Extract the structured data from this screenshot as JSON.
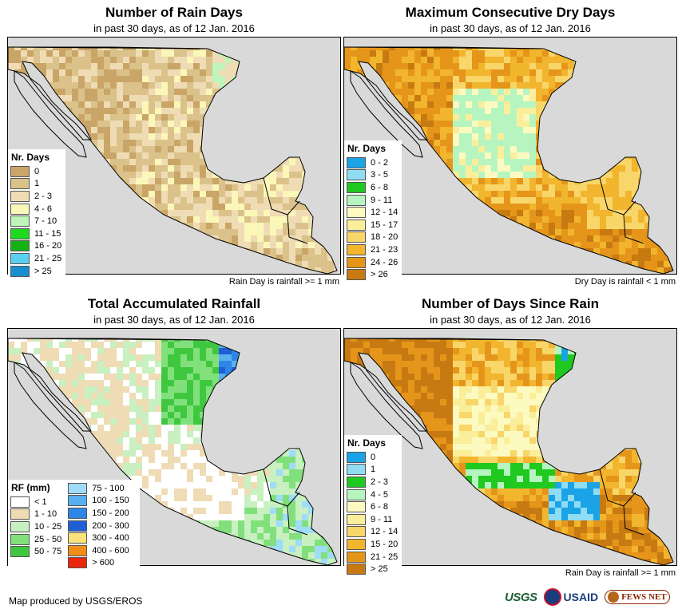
{
  "panels": [
    {
      "id": "rain-days",
      "title": "Number of Rain Days",
      "subtitle": "in past 30 days, as of 12 Jan. 2016",
      "note": "Rain Day is rainfall >= 1 mm",
      "palette": [
        "#c9a567",
        "#dbc28a",
        "#efdcb5",
        "#fbf7b8",
        "#bdf5bb",
        "#1fd91f",
        "#14b214",
        "#5ad0f0",
        "#1a8fcf"
      ],
      "legend": {
        "title": "Nr. Days",
        "items": [
          {
            "label": "0",
            "color": "#c9a567"
          },
          {
            "label": "1",
            "color": "#dbc28a"
          },
          {
            "label": "2 - 3",
            "color": "#efdcb5"
          },
          {
            "label": "4 - 6",
            "color": "#fbf7b8"
          },
          {
            "label": "7 - 10",
            "color": "#bdf5bb"
          },
          {
            "label": "11 - 15",
            "color": "#1fd91f"
          },
          {
            "label": "16 - 20",
            "color": "#14b214"
          },
          {
            "label": "21 - 25",
            "color": "#5ad0f0"
          },
          {
            "label": "> 25",
            "color": "#1a8fcf"
          }
        ]
      }
    },
    {
      "id": "max-dry-days",
      "title": "Maximum Consecutive Dry Days",
      "subtitle": "in past 30 days, as of 12 Jan. 2016",
      "note": "Dry Day is rainfall < 1 mm",
      "palette": [
        "#1ba3e8",
        "#8fdcf3",
        "#1fc91f",
        "#b6f5c0",
        "#fcfac0",
        "#fbee9a",
        "#f8d66a",
        "#f2b52e",
        "#e5961a",
        "#c77a12"
      ],
      "legend": {
        "title": "Nr. Days",
        "items": [
          {
            "label": "0 - 2",
            "color": "#1ba3e8"
          },
          {
            "label": "3 - 5",
            "color": "#8fdcf3"
          },
          {
            "label": "6 - 8",
            "color": "#1fc91f"
          },
          {
            "label": "9 - 11",
            "color": "#b6f5c0"
          },
          {
            "label": "12 - 14",
            "color": "#fcfac0"
          },
          {
            "label": "15 - 17",
            "color": "#fbee9a"
          },
          {
            "label": "18 - 20",
            "color": "#f8d66a"
          },
          {
            "label": "21 - 23",
            "color": "#f2b52e"
          },
          {
            "label": "24 - 26",
            "color": "#e5961a"
          },
          {
            "label": "> 26",
            "color": "#c77a12"
          }
        ]
      }
    },
    {
      "id": "accumulated-rainfall",
      "title": "Total Accumulated Rainfall",
      "subtitle": "in past 30 days, as of 12 Jan. 2016",
      "note": "",
      "palette": [
        "#ffffff",
        "#efdcb5",
        "#c8f0c0",
        "#82e07c",
        "#3fc83f",
        "#9edcf8",
        "#5ab0ef",
        "#2f86e6",
        "#1f5fd6",
        "#fce27a",
        "#ef8f1a",
        "#e8260c"
      ],
      "legend": {
        "title": "RF (mm)",
        "col1": [
          {
            "label": "< 1",
            "color": "#ffffff"
          },
          {
            "label": "1 - 10",
            "color": "#efdcb5"
          },
          {
            "label": "10 - 25",
            "color": "#c8f0c0"
          },
          {
            "label": "25 - 50",
            "color": "#82e07c"
          },
          {
            "label": "50 - 75",
            "color": "#3fc83f"
          }
        ],
        "col2": [
          {
            "label": "75 - 100",
            "color": "#9edcf8"
          },
          {
            "label": "100 - 150",
            "color": "#5ab0ef"
          },
          {
            "label": "150 - 200",
            "color": "#2f86e6"
          },
          {
            "label": "200 - 300",
            "color": "#1f5fd6"
          },
          {
            "label": "300 - 400",
            "color": "#fce27a"
          },
          {
            "label": "400 - 600",
            "color": "#ef8f1a"
          },
          {
            "label": "> 600",
            "color": "#e8260c"
          }
        ]
      }
    },
    {
      "id": "days-since-rain",
      "title": "Number of Days Since Rain",
      "subtitle": "in past 30 days, as of 12 Jan. 2016",
      "note": "Rain Day is rainfall >= 1 mm",
      "palette": [
        "#1ba3e8",
        "#8fdcf3",
        "#1fc91f",
        "#b6f5c0",
        "#fcfac0",
        "#fbee9a",
        "#f8d66a",
        "#f2b52e",
        "#e5961a",
        "#c77a12"
      ],
      "legend": {
        "title": "Nr. Days",
        "items": [
          {
            "label": "0",
            "color": "#1ba3e8"
          },
          {
            "label": "1",
            "color": "#8fdcf3"
          },
          {
            "label": "2 - 3",
            "color": "#1fc91f"
          },
          {
            "label": "4 - 5",
            "color": "#b6f5c0"
          },
          {
            "label": "6 - 8",
            "color": "#fcfac0"
          },
          {
            "label": "9 - 11",
            "color": "#fbee9a"
          },
          {
            "label": "12 - 14",
            "color": "#f8d66a"
          },
          {
            "label": "15 - 20",
            "color": "#f2b52e"
          },
          {
            "label": "21 - 25",
            "color": "#e5961a"
          },
          {
            "label": "> 25",
            "color": "#c77a12"
          }
        ]
      }
    }
  ],
  "map_colors": {
    "sea": "#d9d9d9",
    "border": "#000000"
  },
  "credit": "Map produced by USGS/EROS",
  "logos": {
    "usgs": "USGS",
    "usaid": "USAID",
    "fews": "FEWS NET"
  }
}
